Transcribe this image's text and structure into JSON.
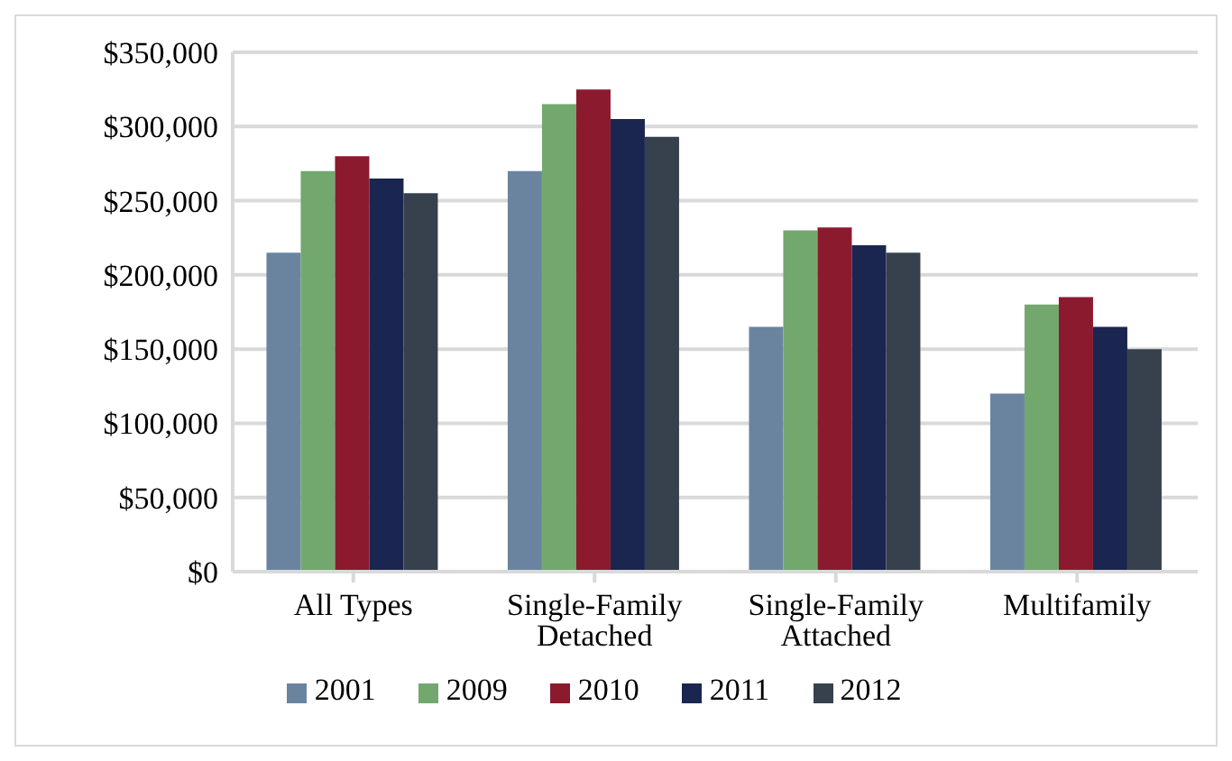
{
  "chart_data": {
    "type": "bar",
    "categories": [
      "All Types",
      "Single-Family Detached",
      "Single-Family Attached",
      "Multifamily"
    ],
    "series": [
      {
        "name": "2001",
        "color": "#6a84a0",
        "values": [
          215000,
          270000,
          165000,
          120000
        ]
      },
      {
        "name": "2009",
        "color": "#72a86e",
        "values": [
          270000,
          315000,
          230000,
          180000
        ]
      },
      {
        "name": "2010",
        "color": "#8c1a2e",
        "values": [
          280000,
          325000,
          232000,
          185000
        ]
      },
      {
        "name": "2011",
        "color": "#1a2650",
        "values": [
          265000,
          305000,
          220000,
          165000
        ]
      },
      {
        "name": "2012",
        "color": "#36414d",
        "values": [
          255000,
          293000,
          215000,
          150000
        ]
      }
    ],
    "ylim": [
      0,
      350000
    ],
    "yticks": [
      {
        "value": 0,
        "label": "$0"
      },
      {
        "value": 50000,
        "label": "$50,000"
      },
      {
        "value": 100000,
        "label": "$100,000"
      },
      {
        "value": 150000,
        "label": "$150,000"
      },
      {
        "value": 200000,
        "label": "$200,000"
      },
      {
        "value": 250000,
        "label": "$250,000"
      },
      {
        "value": 300000,
        "label": "$300,000"
      },
      {
        "value": 350000,
        "label": "$350,000"
      }
    ],
    "grid": "y",
    "legend": "bottom"
  }
}
